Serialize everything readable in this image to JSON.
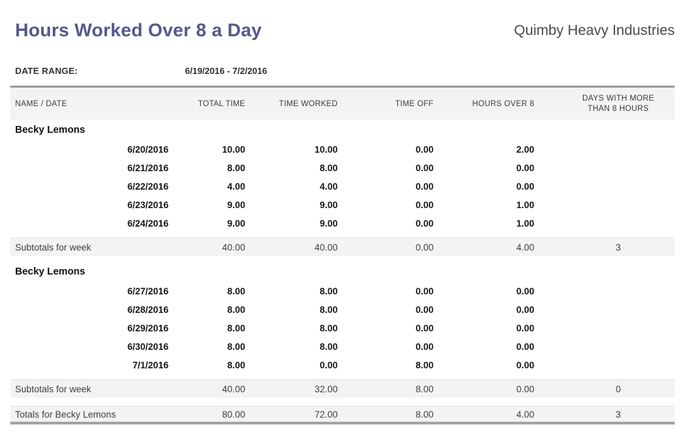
{
  "report": {
    "title": "Hours Worked Over 8 a Day",
    "company": "Quimby Heavy Industries",
    "date_range_label": "DATE RANGE:",
    "date_range": "6/19/2016 - 7/2/2016"
  },
  "colors": {
    "title_accent": "#55588c",
    "band_background": "#f3f3f5",
    "table_top_border": "#9b9b9b",
    "table_bottom_border": "#a3a3a3",
    "body_text": "#161616",
    "muted_text": "#3e3e3e"
  },
  "table": {
    "columns": [
      "NAME / DATE",
      "TOTAL TIME",
      "TIME WORKED",
      "TIME OFF",
      "HOURS OVER 8",
      "DAYS WITH MORE\nTHAN 8 HOURS"
    ],
    "groups": [
      {
        "name": "Becky Lemons",
        "rows": [
          {
            "date": "6/20/2016",
            "total_time": "10.00",
            "time_worked": "10.00",
            "time_off": "0.00",
            "hours_over_8": "2.00",
            "days_over_8": ""
          },
          {
            "date": "6/21/2016",
            "total_time": "8.00",
            "time_worked": "8.00",
            "time_off": "0.00",
            "hours_over_8": "0.00",
            "days_over_8": ""
          },
          {
            "date": "6/22/2016",
            "total_time": "4.00",
            "time_worked": "4.00",
            "time_off": "0.00",
            "hours_over_8": "0.00",
            "days_over_8": ""
          },
          {
            "date": "6/23/2016",
            "total_time": "9.00",
            "time_worked": "9.00",
            "time_off": "0.00",
            "hours_over_8": "1.00",
            "days_over_8": ""
          },
          {
            "date": "6/24/2016",
            "total_time": "9.00",
            "time_worked": "9.00",
            "time_off": "0.00",
            "hours_over_8": "1.00",
            "days_over_8": ""
          }
        ],
        "subtotal": {
          "label": "Subtotals for week",
          "total_time": "40.00",
          "time_worked": "40.00",
          "time_off": "0.00",
          "hours_over_8": "4.00",
          "days_over_8": "3"
        }
      },
      {
        "name": "Becky Lemons",
        "rows": [
          {
            "date": "6/27/2016",
            "total_time": "8.00",
            "time_worked": "8.00",
            "time_off": "0.00",
            "hours_over_8": "0.00",
            "days_over_8": ""
          },
          {
            "date": "6/28/2016",
            "total_time": "8.00",
            "time_worked": "8.00",
            "time_off": "0.00",
            "hours_over_8": "0.00",
            "days_over_8": ""
          },
          {
            "date": "6/29/2016",
            "total_time": "8.00",
            "time_worked": "8.00",
            "time_off": "0.00",
            "hours_over_8": "0.00",
            "days_over_8": ""
          },
          {
            "date": "6/30/2016",
            "total_time": "8.00",
            "time_worked": "8.00",
            "time_off": "0.00",
            "hours_over_8": "0.00",
            "days_over_8": ""
          },
          {
            "date": "7/1/2016",
            "total_time": "8.00",
            "time_worked": "0.00",
            "time_off": "8.00",
            "hours_over_8": "0.00",
            "days_over_8": ""
          }
        ],
        "subtotal": {
          "label": "Subtotals for week",
          "total_time": "40.00",
          "time_worked": "32.00",
          "time_off": "8.00",
          "hours_over_8": "0.00",
          "days_over_8": "0"
        }
      }
    ],
    "totals": {
      "label": "Totals for Becky Lemons",
      "total_time": "80.00",
      "time_worked": "72.00",
      "time_off": "8.00",
      "hours_over_8": "4.00",
      "days_over_8": "3"
    }
  }
}
